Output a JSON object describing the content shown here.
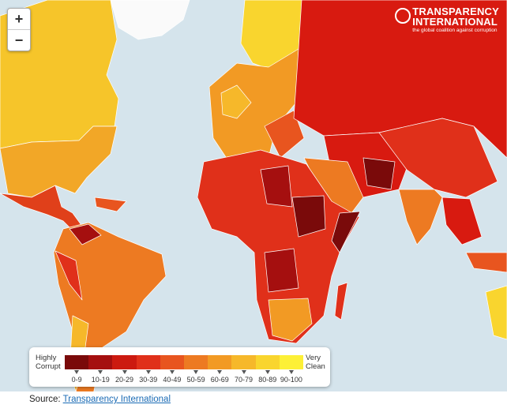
{
  "zoom": {
    "in": "+",
    "out": "−"
  },
  "logo": {
    "name_line1": "TRANSPARENCY",
    "name_line2": "INTERNATIONAL",
    "tagline": "the global coalition against corruption"
  },
  "legend": {
    "low_label": "Highly Corrupt",
    "high_label": "Very Clean",
    "items": [
      {
        "label": "0-9",
        "color": "#7a0a0a"
      },
      {
        "label": "10-19",
        "color": "#a50f0f"
      },
      {
        "label": "20-29",
        "color": "#cc1a10"
      },
      {
        "label": "30-39",
        "color": "#e0301a"
      },
      {
        "label": "40-49",
        "color": "#e8551f"
      },
      {
        "label": "50-59",
        "color": "#ed7a22"
      },
      {
        "label": "60-69",
        "color": "#f29a24"
      },
      {
        "label": "70-79",
        "color": "#f6b82a"
      },
      {
        "label": "80-89",
        "color": "#f9d52e"
      },
      {
        "label": "90-100",
        "color": "#fdf036"
      }
    ]
  },
  "source": {
    "prefix": "Source:",
    "link": "Transparency International"
  }
}
